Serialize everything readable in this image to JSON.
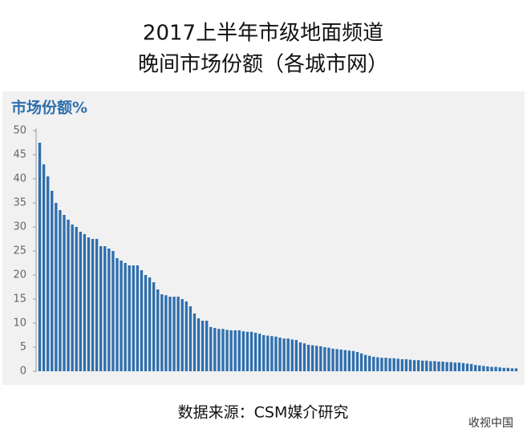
{
  "chart_data": {
    "type": "bar",
    "title": "2017上半年市级地面频道",
    "subtitle": "晚间市场份额（各城市网）",
    "y_label": "市场份额%",
    "source": "数据来源：CSM媒介研究",
    "watermark": "收视中国",
    "color": "#2f6fae",
    "values": [
      47.5,
      43,
      40.5,
      37.5,
      35,
      33.5,
      32.5,
      31.5,
      30.5,
      30,
      29,
      28.5,
      27.8,
      27.5,
      27.5,
      26,
      26,
      25.5,
      25,
      23.5,
      23,
      22.5,
      22,
      22,
      22,
      21,
      20,
      19.5,
      18.5,
      17,
      16,
      15.8,
      15.5,
      15.5,
      15.5,
      15,
      14.5,
      13.5,
      12,
      11,
      10.5,
      10.5,
      9.2,
      9,
      8.8,
      8.8,
      8.6,
      8.5,
      8.5,
      8.5,
      8.3,
      8.2,
      8.2,
      8,
      7.8,
      7.5,
      7.4,
      7.3,
      7.2,
      7,
      6.8,
      6.8,
      6.6,
      6.5,
      6,
      5.8,
      5.5,
      5.4,
      5.3,
      5.2,
      5,
      4.9,
      4.7,
      4.6,
      4.5,
      4.4,
      4.3,
      4.2,
      4,
      3.7,
      3.4,
      3.2,
      3,
      2.9,
      2.8,
      2.8,
      2.7,
      2.7,
      2.6,
      2.5,
      2.5,
      2.4,
      2.3,
      2.3,
      2.2,
      2.2,
      2.1,
      2.1,
      2,
      2,
      1.9,
      1.9,
      1.8,
      1.8,
      1.7,
      1.6,
      1.5,
      1.3,
      1.2,
      1.1,
      1,
      0.9,
      0.9,
      0.8,
      0.7,
      0.7,
      0.6,
      0.6
    ],
    "ylim": [
      0,
      50
    ],
    "yticks": [
      0,
      5,
      10,
      15,
      20,
      25,
      30,
      35,
      40,
      45,
      50
    ]
  }
}
